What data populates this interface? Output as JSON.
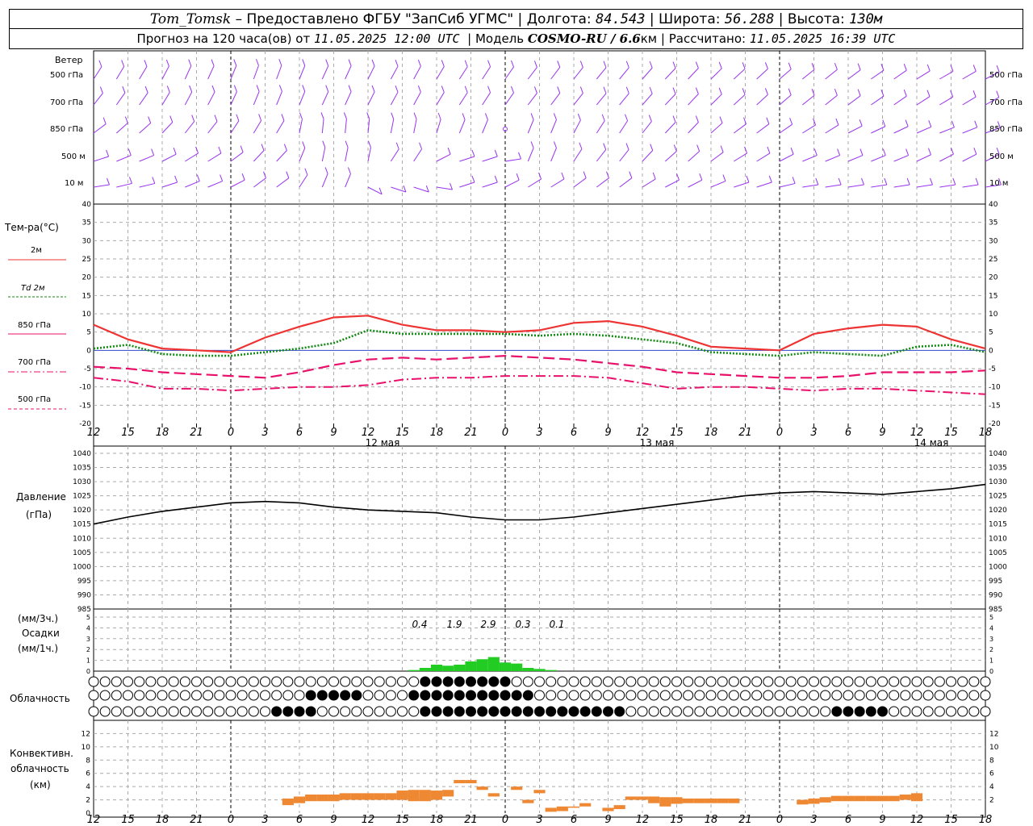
{
  "header": {
    "station": "Tom_Tomsk",
    "dash": "–",
    "provided_by": "Предоставлено ФГБУ \"ЗапСиб УГМС\"",
    "lon_label": "Долгота:",
    "lon": "84.543",
    "lat_label": "Широта:",
    "lat": "56.288",
    "alt_label": "Высота:",
    "alt": "130м",
    "forecast_label": "Прогноз на 120 часа(ов) от",
    "forecast_time": "11.05.2025 12:00 UTC",
    "model_label": "Модель",
    "model": "COSMO-RU / 6.6",
    "model_unit": "км",
    "computed_label": "Рассчитано:",
    "computed_time": "11.05.2025 16:39 UTC"
  },
  "colors": {
    "t2m": "#ee3333",
    "td2m": "#118811",
    "t850": "#e8106a",
    "t700": "#e8106a",
    "t500": "#e8106a",
    "wind": "#9933ee",
    "precip": "#22cc22",
    "conv": "#ee8833",
    "pressure": "#000000"
  },
  "panels": {
    "wind": {
      "title": "Ветер",
      "levels": [
        "500 гПа",
        "700 гПа",
        "850 гПа",
        "500 м",
        "10 м"
      ]
    },
    "temp": {
      "title": "Тем-ра(°C)",
      "legend": [
        {
          "label": "2м",
          "style": "solid"
        },
        {
          "label": "Td  2м",
          "style": "dotted"
        },
        {
          "label": "850 гПа",
          "style": "solid"
        },
        {
          "label": "700 гПа",
          "style": "dash-dot"
        },
        {
          "label": "500 гПа",
          "style": "dashed"
        }
      ]
    },
    "pressure": {
      "title": "Давление",
      "unit": "(гПа)"
    },
    "precip": {
      "unit_top": "(мм/3ч.)",
      "title": "Осадки",
      "unit_bottom": "(мм/1ч.)",
      "totals": [
        "0.4",
        "1.9",
        "2.9",
        "0.3",
        "0.1"
      ]
    },
    "cloud": {
      "title": "Облачность"
    },
    "conv": {
      "title1": "Конвективн.",
      "title2": "облачность",
      "unit": "(км)"
    }
  },
  "x_ticks": [
    "12",
    "15",
    "18",
    "21",
    "0",
    "3",
    "6",
    "9",
    "12",
    "15",
    "18",
    "21",
    "0",
    "3",
    "6",
    "9",
    "12",
    "15",
    "18",
    "21",
    "0",
    "3",
    "6",
    "9",
    "12",
    "15",
    "18"
  ],
  "dates": [
    "12 мая",
    "13 мая",
    "14 мая"
  ],
  "chart_data": [
    {
      "type": "line",
      "title": "Тем-ра(°C)",
      "x": [
        "11.05 12",
        "11.05 15",
        "11.05 18",
        "11.05 21",
        "12.05 0",
        "12.05 3",
        "12.05 6",
        "12.05 9",
        "12.05 12",
        "12.05 15",
        "12.05 18",
        "12.05 21",
        "13.05 0",
        "13.05 3",
        "13.05 6",
        "13.05 9",
        "13.05 12",
        "13.05 15",
        "13.05 18",
        "13.05 21",
        "14.05 0",
        "14.05 3",
        "14.05 6",
        "14.05 9",
        "14.05 12",
        "14.05 15",
        "14.05 18"
      ],
      "ylim": [
        -20,
        40
      ],
      "series": [
        {
          "name": "2м",
          "values": [
            7,
            3,
            0.5,
            0,
            -0.5,
            3.5,
            6.5,
            9,
            9.5,
            7,
            5.5,
            5.5,
            5,
            5.5,
            7.5,
            8,
            6.5,
            4,
            1,
            0.5,
            0,
            4.5,
            6,
            7,
            6.5,
            3,
            0.5
          ]
        },
        {
          "name": "Td  2м",
          "values": [
            0.5,
            1.5,
            -1,
            -1.5,
            -1.5,
            -0.5,
            0.5,
            2,
            5.5,
            4.5,
            4.5,
            4.5,
            4.5,
            4,
            4.5,
            4,
            3,
            2,
            -0.5,
            -1,
            -1.5,
            -0.5,
            -1,
            -1.5,
            1,
            1.5,
            -0.5
          ]
        },
        {
          "name": "850 гПа",
          "values": [
            -4.5,
            -5,
            -6,
            -6.5,
            -7,
            -7.5,
            -6,
            -4,
            -2.5,
            -2,
            -2.5,
            -2,
            -1.5,
            -2,
            -2.5,
            -3.5,
            -4.5,
            -6,
            -6.5,
            -7,
            -7.5,
            -7.5,
            -7,
            -6,
            -6,
            -6,
            -5.5
          ]
        },
        {
          "name": "700 гПа",
          "values": [
            -7.5,
            -8.5,
            -10.5,
            -10.5,
            -11,
            -10.5,
            -10,
            -10,
            -9.5,
            -8,
            -7.5,
            -7.5,
            -7,
            -7,
            -7,
            -7.5,
            -9,
            -10.5,
            -10,
            -10,
            -10.5,
            -11,
            -10.5,
            -10.5,
            -11,
            -11.5,
            -12
          ]
        }
      ]
    },
    {
      "type": "line",
      "title": "Давление",
      "ylabel": "(гПа)",
      "ylim": [
        985,
        1040
      ],
      "x": [
        "11.05 12",
        "11.05 15",
        "11.05 18",
        "11.05 21",
        "12.05 0",
        "12.05 3",
        "12.05 6",
        "12.05 9",
        "12.05 12",
        "12.05 15",
        "12.05 18",
        "12.05 21",
        "13.05 0",
        "13.05 3",
        "13.05 6",
        "13.05 9",
        "13.05 12",
        "13.05 15",
        "13.05 18",
        "13.05 21",
        "14.05 0",
        "14.05 3",
        "14.05 6",
        "14.05 9",
        "14.05 12",
        "14.05 15",
        "14.05 18"
      ],
      "series": [
        {
          "name": "Давление",
          "values": [
            1015,
            1017.5,
            1019.5,
            1021,
            1022.5,
            1023,
            1022.5,
            1021,
            1020,
            1019.5,
            1019,
            1017.5,
            1016.5,
            1016.5,
            1017.5,
            1019,
            1020.5,
            1022,
            1023.5,
            1025,
            1026,
            1026.5,
            1026,
            1025.5,
            1026.5,
            1027.5,
            1029
          ]
        }
      ]
    },
    {
      "type": "bar",
      "title": "Осадки",
      "ylabel": "(мм/1ч.)",
      "ylim": [
        0,
        5
      ],
      "x": [
        "16",
        "17",
        "18",
        "19",
        "20",
        "21",
        "22",
        "23",
        "0",
        "1",
        "2",
        "3",
        "4"
      ],
      "values": [
        0.1,
        0.3,
        0.6,
        0.5,
        0.6,
        0.9,
        1.1,
        1.3,
        0.8,
        0.7,
        0.3,
        0.2,
        0.1
      ]
    }
  ]
}
